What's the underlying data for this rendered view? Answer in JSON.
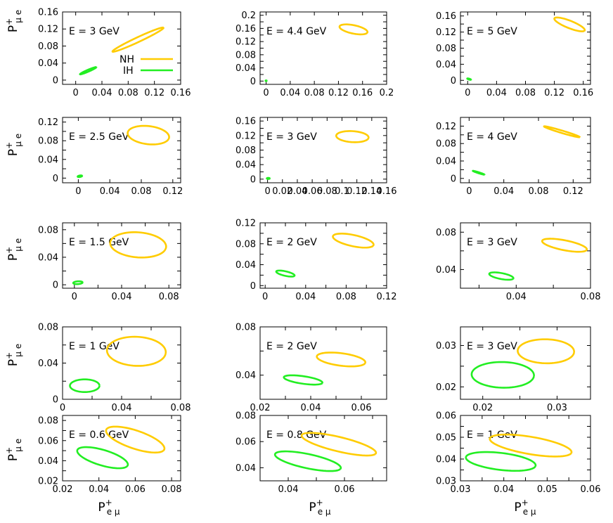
{
  "colors": {
    "nh": "#ffcc00",
    "ih": "#22ee22",
    "frame": "#000000"
  },
  "axis_labels": {
    "y_main": "P",
    "y_sup": "+",
    "y_sub": "μ e",
    "x_main": "P",
    "x_sup": "+",
    "x_sub": "e μ"
  },
  "legend": {
    "nh_label": "NH",
    "ih_label": "IH"
  },
  "chart_data": [
    {
      "type": "scatter",
      "energy_label": "E = 3 GeV",
      "xlim": [
        -0.02,
        0.16
      ],
      "ylim": [
        -0.01,
        0.16
      ],
      "xticks": [
        0,
        0.04,
        0.08,
        0.12,
        0.16
      ],
      "xtick_labels": [
        "0",
        "0.04",
        "0.08",
        "0.12",
        "0.16"
      ],
      "yticks": [
        0,
        0.04,
        0.08,
        0.12,
        0.16
      ],
      "ytick_labels": [
        "0",
        "0.04",
        "0.08",
        "0.12",
        "0.16"
      ],
      "series": [
        {
          "name": "NH",
          "cx": 0.095,
          "cy": 0.095,
          "rx": 0.048,
          "ry": 0.005,
          "angle_deg": 36
        },
        {
          "name": "IH",
          "cx": 0.019,
          "cy": 0.022,
          "rx": 0.015,
          "ry": 0.002,
          "angle_deg": 34
        }
      ]
    },
    {
      "type": "scatter",
      "energy_label": "E = 4.4 GeV",
      "xlim": [
        -0.01,
        0.2
      ],
      "ylim": [
        -0.01,
        0.21
      ],
      "xticks": [
        0,
        0.04,
        0.08,
        0.12,
        0.16,
        0.2
      ],
      "xtick_labels": [
        "0",
        "0.04",
        "0.08",
        "0.12",
        "0.16",
        "0.2"
      ],
      "yticks": [
        0,
        0.02,
        0.04,
        0.06,
        0.08,
        0.1,
        0.12,
        0.14,
        0.16,
        0.18,
        0.2
      ],
      "ytick_labels": [
        "0",
        "",
        "0.04",
        "",
        "0.08",
        "",
        "0.12",
        "",
        "0.16",
        "",
        "0.2"
      ],
      "series": [
        {
          "name": "NH",
          "cx": 0.145,
          "cy": 0.157,
          "rx": 0.025,
          "ry": 0.012,
          "angle_deg": -25
        },
        {
          "name": "IH",
          "cx": 0.0,
          "cy": 0.001,
          "rx": 0.001,
          "ry": 0.001,
          "angle_deg": 0
        }
      ]
    },
    {
      "type": "scatter",
      "energy_label": "E = 5 GeV",
      "xlim": [
        -0.01,
        0.17
      ],
      "ylim": [
        -0.01,
        0.17
      ],
      "xticks": [
        0,
        0.04,
        0.08,
        0.12,
        0.16
      ],
      "xtick_labels": [
        "0",
        "0.04",
        "0.08",
        "0.12",
        "0.16"
      ],
      "yticks": [
        0,
        0.02,
        0.04,
        0.06,
        0.08,
        0.1,
        0.12,
        0.14,
        0.16
      ],
      "ytick_labels": [
        "0",
        "",
        "0.04",
        "",
        "0.08",
        "",
        "0.12",
        "",
        "0.16"
      ],
      "series": [
        {
          "name": "NH",
          "cx": 0.141,
          "cy": 0.139,
          "rx": 0.026,
          "ry": 0.008,
          "angle_deg": -38
        },
        {
          "name": "IH",
          "cx": 0.002,
          "cy": 0.003,
          "rx": 0.003,
          "ry": 0.001,
          "angle_deg": -30
        }
      ]
    },
    {
      "type": "scatter",
      "energy_label": "E = 2.5 GeV",
      "xlim": [
        -0.02,
        0.13
      ],
      "ylim": [
        -0.01,
        0.13
      ],
      "xticks": [
        0,
        0.04,
        0.08,
        0.12
      ],
      "xtick_labels": [
        "0",
        "0.04",
        "0.08",
        "0.12"
      ],
      "yticks": [
        0,
        0.02,
        0.04,
        0.06,
        0.08,
        0.1,
        0.12
      ],
      "ytick_labels": [
        "0",
        "",
        "0.04",
        "",
        "0.08",
        "",
        "0.12"
      ],
      "series": [
        {
          "name": "NH",
          "cx": 0.089,
          "cy": 0.092,
          "rx": 0.027,
          "ry": 0.019,
          "angle_deg": -18
        },
        {
          "name": "IH",
          "cx": 0.002,
          "cy": 0.004,
          "rx": 0.003,
          "ry": 0.0015,
          "angle_deg": 20
        }
      ]
    },
    {
      "type": "scatter",
      "energy_label": "E = 3 GeV",
      "xlim": [
        -0.01,
        0.16
      ],
      "ylim": [
        -0.01,
        0.17
      ],
      "xticks": [
        0,
        0.02,
        0.04,
        0.06,
        0.08,
        0.1,
        0.12,
        0.14,
        0.16
      ],
      "xtick_labels": [
        "0",
        "0.02",
        "0.04",
        "0.06",
        "0.08",
        "0.1",
        "0.12",
        "0.14",
        "0.16"
      ],
      "yticks": [
        0,
        0.02,
        0.04,
        0.06,
        0.08,
        0.1,
        0.12,
        0.14,
        0.16
      ],
      "ytick_labels": [
        "0",
        "",
        "0.04",
        "",
        "0.08",
        "",
        "0.12",
        "",
        "0.16"
      ],
      "series": [
        {
          "name": "NH",
          "cx": 0.114,
          "cy": 0.117,
          "rx": 0.022,
          "ry": 0.015,
          "angle_deg": -12
        },
        {
          "name": "IH",
          "cx": 0.001,
          "cy": 0.002,
          "rx": 0.002,
          "ry": 0.0015,
          "angle_deg": 0
        }
      ]
    },
    {
      "type": "scatter",
      "energy_label": "E = 4 GeV",
      "xlim": [
        -0.01,
        0.14
      ],
      "ylim": [
        -0.01,
        0.14
      ],
      "xticks": [
        0,
        0.04,
        0.08,
        0.12
      ],
      "xtick_labels": [
        "0",
        "0.04",
        "0.08",
        "0.12"
      ],
      "yticks": [
        0,
        0.02,
        0.04,
        0.06,
        0.08,
        0.1,
        0.12
      ],
      "ytick_labels": [
        "0",
        "",
        "0.04",
        "",
        "0.08",
        "",
        "0.12"
      ],
      "series": [
        {
          "name": "NH",
          "cx": 0.107,
          "cy": 0.107,
          "rx": 0.024,
          "ry": 0.0025,
          "angle_deg": -31
        },
        {
          "name": "IH",
          "cx": 0.011,
          "cy": 0.013,
          "rx": 0.008,
          "ry": 0.001,
          "angle_deg": -33
        }
      ]
    },
    {
      "type": "scatter",
      "energy_label": "E = 1.5 GeV",
      "xlim": [
        -0.01,
        0.09
      ],
      "ylim": [
        -0.005,
        0.09
      ],
      "xticks": [
        0,
        0.02,
        0.04,
        0.06,
        0.08
      ],
      "xtick_labels": [
        "0",
        "",
        "0.04",
        "",
        "0.08"
      ],
      "yticks": [
        0,
        0.02,
        0.04,
        0.06,
        0.08
      ],
      "ytick_labels": [
        "0",
        "",
        "0.04",
        "",
        "0.08"
      ],
      "series": [
        {
          "name": "NH",
          "cx": 0.054,
          "cy": 0.058,
          "rx": 0.024,
          "ry": 0.018,
          "angle_deg": -14
        },
        {
          "name": "IH",
          "cx": 0.003,
          "cy": 0.003,
          "rx": 0.004,
          "ry": 0.002,
          "angle_deg": 8
        }
      ]
    },
    {
      "type": "scatter",
      "energy_label": "E = 2 GeV",
      "xlim": [
        -0.005,
        0.12
      ],
      "ylim": [
        -0.005,
        0.12
      ],
      "xticks": [
        0,
        0.02,
        0.04,
        0.06,
        0.08,
        0.1,
        0.12
      ],
      "xtick_labels": [
        "0",
        "",
        "0.04",
        "",
        "0.08",
        "",
        "0.12"
      ],
      "yticks": [
        0,
        0.02,
        0.04,
        0.06,
        0.08,
        0.1,
        0.12
      ],
      "ytick_labels": [
        "0",
        "",
        "0.04",
        "",
        "0.08",
        "",
        "0.12"
      ],
      "series": [
        {
          "name": "NH",
          "cx": 0.087,
          "cy": 0.086,
          "rx": 0.022,
          "ry": 0.01,
          "angle_deg": -27
        },
        {
          "name": "IH",
          "cx": 0.02,
          "cy": 0.023,
          "rx": 0.01,
          "ry": 0.004,
          "angle_deg": -27
        }
      ]
    },
    {
      "type": "scatter",
      "energy_label": "E = 3 GeV",
      "xlim": [
        0.01,
        0.08
      ],
      "ylim": [
        0.02,
        0.09
      ],
      "xticks": [
        0.02,
        0.04,
        0.06,
        0.08
      ],
      "xtick_labels": [
        "",
        "0.04",
        "",
        "0.08"
      ],
      "yticks": [
        0.04,
        0.06,
        0.08
      ],
      "ytick_labels": [
        "0.04",
        "",
        "0.08"
      ],
      "series": [
        {
          "name": "NH",
          "cx": 0.066,
          "cy": 0.066,
          "rx": 0.013,
          "ry": 0.005,
          "angle_deg": -24
        },
        {
          "name": "IH",
          "cx": 0.032,
          "cy": 0.033,
          "rx": 0.007,
          "ry": 0.003,
          "angle_deg": -24
        }
      ]
    },
    {
      "type": "scatter",
      "energy_label": "E = 1 GeV",
      "xlim": [
        0,
        0.08
      ],
      "ylim": [
        0,
        0.08
      ],
      "xticks": [
        0,
        0.02,
        0.04,
        0.06,
        0.08
      ],
      "xtick_labels": [
        "0",
        "",
        "0.04",
        "",
        "0.08"
      ],
      "yticks": [
        0,
        0.02,
        0.04,
        0.06,
        0.08
      ],
      "ytick_labels": [
        "0",
        "",
        "0.04",
        "",
        "0.08"
      ],
      "series": [
        {
          "name": "NH",
          "cx": 0.05,
          "cy": 0.053,
          "rx": 0.02,
          "ry": 0.016,
          "angle_deg": -8
        },
        {
          "name": "IH",
          "cx": 0.015,
          "cy": 0.015,
          "rx": 0.01,
          "ry": 0.007,
          "angle_deg": 0
        }
      ]
    },
    {
      "type": "scatter",
      "energy_label": "E = 2 GeV",
      "xlim": [
        0.02,
        0.07
      ],
      "ylim": [
        0.02,
        0.08
      ],
      "xticks": [
        0.02,
        0.03,
        0.04,
        0.05,
        0.06
      ],
      "xtick_labels": [
        "0.02",
        "",
        "0.04",
        "",
        "0.06"
      ],
      "yticks": [
        0.02,
        0.04,
        0.06,
        0.08
      ],
      "ytick_labels": [
        "",
        "0.04",
        "",
        "0.08"
      ],
      "series": [
        {
          "name": "NH",
          "cx": 0.052,
          "cy": 0.053,
          "rx": 0.01,
          "ry": 0.005,
          "angle_deg": -19
        },
        {
          "name": "IH",
          "cx": 0.037,
          "cy": 0.036,
          "rx": 0.008,
          "ry": 0.003,
          "angle_deg": -19
        }
      ]
    },
    {
      "type": "scatter",
      "energy_label": "E = 3 GeV",
      "xlim": [
        0.017,
        0.0345
      ],
      "ylim": [
        0.017,
        0.0345
      ],
      "xticks": [
        0.02,
        0.025,
        0.03
      ],
      "xtick_labels": [
        "0.02",
        "",
        "0.03"
      ],
      "yticks": [
        0.02,
        0.025,
        0.03
      ],
      "ytick_labels": [
        "0.02",
        "",
        "0.03"
      ],
      "series": [
        {
          "name": "NH",
          "cx": 0.0285,
          "cy": 0.0286,
          "rx": 0.0038,
          "ry": 0.0029,
          "angle_deg": -4
        },
        {
          "name": "IH",
          "cx": 0.0227,
          "cy": 0.0229,
          "rx": 0.0042,
          "ry": 0.0031,
          "angle_deg": -4
        }
      ]
    },
    {
      "type": "scatter",
      "energy_label": "E = 0.6 GeV",
      "xlim": [
        0.02,
        0.085
      ],
      "ylim": [
        0.02,
        0.085
      ],
      "xticks": [
        0.02,
        0.04,
        0.06,
        0.08
      ],
      "xtick_labels": [
        "0.02",
        "0.04",
        "0.06",
        "0.08"
      ],
      "yticks": [
        0.02,
        0.03,
        0.04,
        0.05,
        0.06,
        0.07,
        0.08
      ],
      "ytick_labels": [
        "0.02",
        "",
        "0.04",
        "",
        "0.06",
        "",
        "0.08"
      ],
      "series": [
        {
          "name": "NH",
          "cx": 0.06,
          "cy": 0.061,
          "rx": 0.019,
          "ry": 0.008,
          "angle_deg": -36
        },
        {
          "name": "IH",
          "cx": 0.042,
          "cy": 0.043,
          "rx": 0.016,
          "ry": 0.007,
          "angle_deg": -33
        }
      ]
    },
    {
      "type": "scatter",
      "energy_label": "E = 0.8 GeV",
      "xlim": [
        0.03,
        0.075
      ],
      "ylim": [
        0.03,
        0.08
      ],
      "xticks": [
        0.03,
        0.04,
        0.05,
        0.06,
        0.07
      ],
      "xtick_labels": [
        "",
        "0.04",
        "",
        "0.06",
        ""
      ],
      "yticks": [
        0.04,
        0.06,
        0.08
      ],
      "ytick_labels": [
        "0.04",
        "0.06",
        "0.08"
      ],
      "series": [
        {
          "name": "NH",
          "cx": 0.058,
          "cy": 0.058,
          "rx": 0.015,
          "ry": 0.005,
          "angle_deg": -30
        },
        {
          "name": "IH",
          "cx": 0.047,
          "cy": 0.045,
          "rx": 0.013,
          "ry": 0.005,
          "angle_deg": -28
        }
      ]
    },
    {
      "type": "scatter",
      "energy_label": "E = 1 GeV",
      "xlim": [
        0.03,
        0.06
      ],
      "ylim": [
        0.03,
        0.06
      ],
      "xticks": [
        0.03,
        0.035,
        0.04,
        0.045,
        0.05,
        0.055,
        0.06
      ],
      "xtick_labels": [
        "0.03",
        "",
        "0.04",
        "",
        "0.05",
        "",
        "0.06"
      ],
      "yticks": [
        0.03,
        0.035,
        0.04,
        0.045,
        0.05,
        0.055,
        0.06
      ],
      "ytick_labels": [
        "0.03",
        "",
        "0.04",
        "",
        "0.05",
        "",
        "0.06"
      ],
      "series": [
        {
          "name": "NH",
          "cx": 0.0462,
          "cy": 0.0462,
          "rx": 0.01,
          "ry": 0.0038,
          "angle_deg": -21
        },
        {
          "name": "IH",
          "cx": 0.0393,
          "cy": 0.0389,
          "rx": 0.0083,
          "ry": 0.0038,
          "angle_deg": -16
        }
      ]
    }
  ]
}
